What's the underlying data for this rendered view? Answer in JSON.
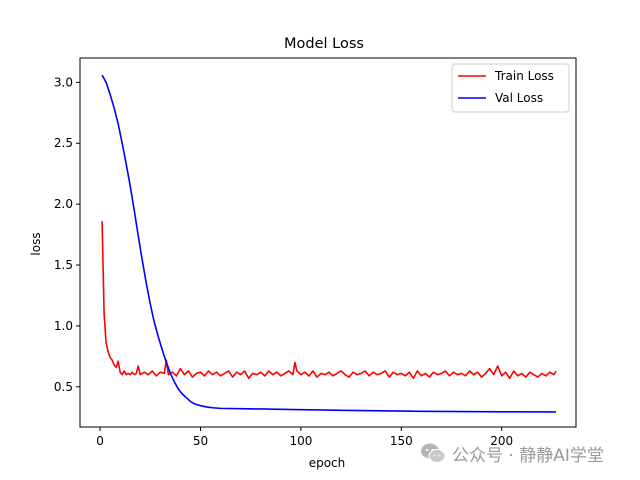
{
  "chart_data": {
    "type": "line",
    "title": "Model Loss",
    "xlabel": "epoch",
    "ylabel": "loss",
    "xlim": [
      -10,
      237
    ],
    "ylim": [
      0.17,
      3.2
    ],
    "x_ticks": [
      0,
      50,
      100,
      150,
      200
    ],
    "y_ticks": [
      0.5,
      1.0,
      1.5,
      2.0,
      2.5,
      3.0
    ],
    "legend_position": "top-right",
    "grid": false,
    "series": [
      {
        "name": "Train Loss",
        "color": "#ff0000",
        "points": [
          [
            1,
            1.86
          ],
          [
            2,
            1.1
          ],
          [
            3,
            0.86
          ],
          [
            4,
            0.79
          ],
          [
            5,
            0.74
          ],
          [
            6,
            0.72
          ],
          [
            7,
            0.68
          ],
          [
            8,
            0.66
          ],
          [
            9,
            0.71
          ],
          [
            10,
            0.62
          ],
          [
            11,
            0.6
          ],
          [
            12,
            0.63
          ],
          [
            13,
            0.6
          ],
          [
            14,
            0.61
          ],
          [
            15,
            0.6
          ],
          [
            16,
            0.62
          ],
          [
            17,
            0.6
          ],
          [
            18,
            0.61
          ],
          [
            19,
            0.67
          ],
          [
            20,
            0.6
          ],
          [
            22,
            0.62
          ],
          [
            24,
            0.6
          ],
          [
            26,
            0.63
          ],
          [
            28,
            0.59
          ],
          [
            30,
            0.62
          ],
          [
            32,
            0.61
          ],
          [
            33,
            0.72
          ],
          [
            34,
            0.6
          ],
          [
            36,
            0.62
          ],
          [
            38,
            0.59
          ],
          [
            40,
            0.65
          ],
          [
            42,
            0.6
          ],
          [
            44,
            0.63
          ],
          [
            46,
            0.58
          ],
          [
            48,
            0.61
          ],
          [
            50,
            0.62
          ],
          [
            52,
            0.59
          ],
          [
            54,
            0.63
          ],
          [
            56,
            0.6
          ],
          [
            58,
            0.62
          ],
          [
            60,
            0.59
          ],
          [
            62,
            0.61
          ],
          [
            64,
            0.63
          ],
          [
            66,
            0.58
          ],
          [
            68,
            0.62
          ],
          [
            70,
            0.6
          ],
          [
            72,
            0.63
          ],
          [
            74,
            0.57
          ],
          [
            76,
            0.61
          ],
          [
            78,
            0.6
          ],
          [
            80,
            0.62
          ],
          [
            82,
            0.59
          ],
          [
            84,
            0.63
          ],
          [
            86,
            0.6
          ],
          [
            88,
            0.62
          ],
          [
            90,
            0.59
          ],
          [
            92,
            0.61
          ],
          [
            94,
            0.63
          ],
          [
            96,
            0.6
          ],
          [
            97,
            0.7
          ],
          [
            98,
            0.63
          ],
          [
            100,
            0.6
          ],
          [
            102,
            0.62
          ],
          [
            104,
            0.59
          ],
          [
            106,
            0.63
          ],
          [
            108,
            0.58
          ],
          [
            110,
            0.61
          ],
          [
            112,
            0.6
          ],
          [
            114,
            0.62
          ],
          [
            116,
            0.59
          ],
          [
            118,
            0.61
          ],
          [
            120,
            0.63
          ],
          [
            122,
            0.6
          ],
          [
            124,
            0.58
          ],
          [
            126,
            0.62
          ],
          [
            128,
            0.6
          ],
          [
            130,
            0.61
          ],
          [
            132,
            0.63
          ],
          [
            134,
            0.59
          ],
          [
            136,
            0.62
          ],
          [
            138,
            0.6
          ],
          [
            140,
            0.61
          ],
          [
            142,
            0.63
          ],
          [
            144,
            0.58
          ],
          [
            146,
            0.62
          ],
          [
            148,
            0.6
          ],
          [
            150,
            0.61
          ],
          [
            152,
            0.59
          ],
          [
            154,
            0.62
          ],
          [
            156,
            0.57
          ],
          [
            158,
            0.63
          ],
          [
            160,
            0.59
          ],
          [
            162,
            0.61
          ],
          [
            164,
            0.58
          ],
          [
            166,
            0.62
          ],
          [
            168,
            0.6
          ],
          [
            170,
            0.61
          ],
          [
            172,
            0.63
          ],
          [
            174,
            0.59
          ],
          [
            176,
            0.62
          ],
          [
            178,
            0.6
          ],
          [
            180,
            0.61
          ],
          [
            182,
            0.59
          ],
          [
            184,
            0.63
          ],
          [
            186,
            0.6
          ],
          [
            188,
            0.62
          ],
          [
            190,
            0.58
          ],
          [
            192,
            0.61
          ],
          [
            194,
            0.65
          ],
          [
            196,
            0.6
          ],
          [
            198,
            0.67
          ],
          [
            200,
            0.59
          ],
          [
            202,
            0.62
          ],
          [
            204,
            0.57
          ],
          [
            206,
            0.63
          ],
          [
            208,
            0.59
          ],
          [
            210,
            0.61
          ],
          [
            212,
            0.58
          ],
          [
            214,
            0.62
          ],
          [
            216,
            0.6
          ],
          [
            218,
            0.58
          ],
          [
            220,
            0.61
          ],
          [
            222,
            0.59
          ],
          [
            224,
            0.62
          ],
          [
            226,
            0.6
          ],
          [
            227,
            0.63
          ]
        ]
      },
      {
        "name": "Val Loss",
        "color": "#0000ff",
        "points": [
          [
            1,
            3.06
          ],
          [
            3,
            3.0
          ],
          [
            5,
            2.9
          ],
          [
            7,
            2.79
          ],
          [
            9,
            2.66
          ],
          [
            11,
            2.5
          ],
          [
            13,
            2.33
          ],
          [
            15,
            2.15
          ],
          [
            17,
            1.95
          ],
          [
            19,
            1.74
          ],
          [
            21,
            1.54
          ],
          [
            23,
            1.35
          ],
          [
            25,
            1.18
          ],
          [
            27,
            1.03
          ],
          [
            29,
            0.91
          ],
          [
            31,
            0.8
          ],
          [
            33,
            0.7
          ],
          [
            35,
            0.61
          ],
          [
            37,
            0.54
          ],
          [
            39,
            0.48
          ],
          [
            41,
            0.44
          ],
          [
            43,
            0.41
          ],
          [
            45,
            0.38
          ],
          [
            47,
            0.36
          ],
          [
            50,
            0.345
          ],
          [
            53,
            0.335
          ],
          [
            56,
            0.328
          ],
          [
            60,
            0.323
          ],
          [
            70,
            0.32
          ],
          [
            80,
            0.318
          ],
          [
            90,
            0.315
          ],
          [
            100,
            0.312
          ],
          [
            110,
            0.31
          ],
          [
            120,
            0.307
          ],
          [
            130,
            0.305
          ],
          [
            140,
            0.303
          ],
          [
            150,
            0.301
          ],
          [
            160,
            0.299
          ],
          [
            170,
            0.298
          ],
          [
            180,
            0.297
          ],
          [
            190,
            0.296
          ],
          [
            200,
            0.295
          ],
          [
            210,
            0.295
          ],
          [
            220,
            0.294
          ],
          [
            227,
            0.294
          ]
        ]
      }
    ]
  },
  "watermark": {
    "icon": "wechat-icon",
    "text": "公众号 · 静静AI学堂"
  }
}
